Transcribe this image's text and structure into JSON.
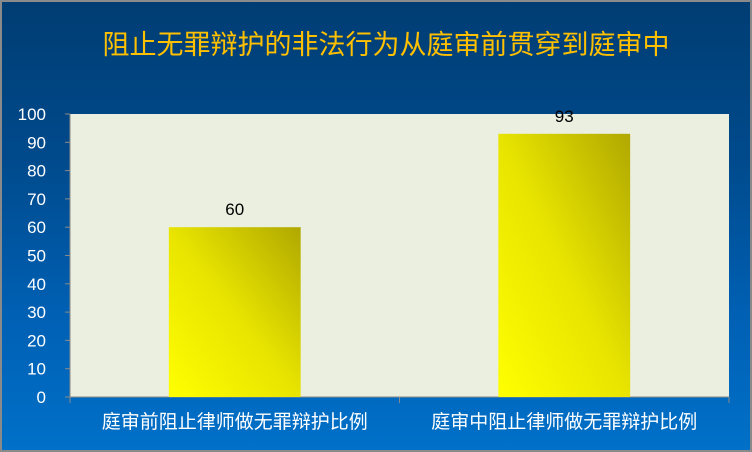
{
  "chart_data": {
    "type": "bar",
    "title": "阻止无罪辩护的非法行为从庭审前贯穿到庭审中",
    "categories": [
      "庭审前阻止律师做无罪辩护比例",
      "庭审中阻止律师做无罪辩护比例"
    ],
    "values": [
      60,
      93
    ],
    "data_labels": [
      "60",
      "93"
    ],
    "xlabel": "",
    "ylabel": "",
    "ylim": [
      0,
      100
    ],
    "yticks": [
      "0",
      "10",
      "20",
      "30",
      "40",
      "50",
      "60",
      "70",
      "80",
      "90",
      "100"
    ],
    "grid": false,
    "legend": "none",
    "colors": {
      "bar_light": "#ffff00",
      "bar_dark": "#b0a800",
      "plot_bg": "#ebefdf",
      "title": "#ffc000",
      "background_top": "#003d73",
      "background_bottom": "#0070c8"
    }
  }
}
